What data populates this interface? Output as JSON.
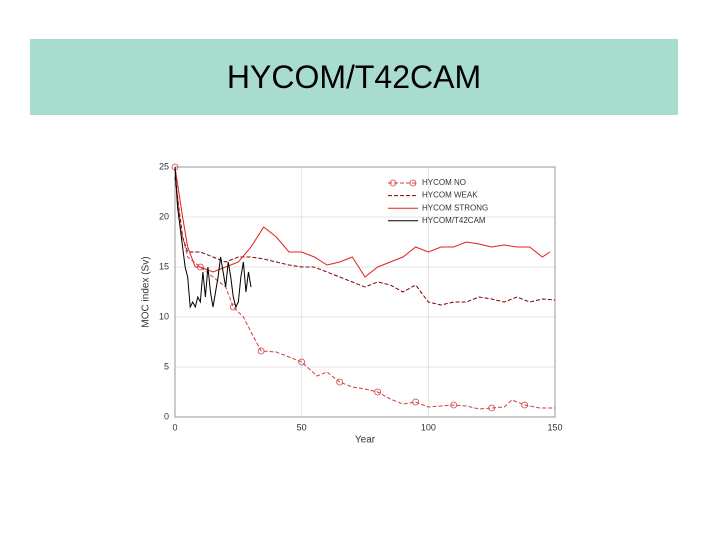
{
  "slide": {
    "title": "HYCOM/T42CAM"
  },
  "chart_data": {
    "type": "line",
    "xlabel": "Year",
    "ylabel": "MOC index (Sv)",
    "xlim": [
      0,
      150
    ],
    "ylim": [
      0,
      25
    ],
    "xticks": [
      0,
      50,
      100,
      150
    ],
    "yticks": [
      0,
      5,
      10,
      15,
      20,
      25
    ],
    "grid": true,
    "legend": "upper right",
    "series": [
      {
        "name": "HYCOM NO",
        "color": "#d04040",
        "dashed": true,
        "markers": true,
        "x": [
          0,
          2,
          5,
          10,
          15,
          20,
          23,
          27,
          30,
          34,
          40,
          45,
          50,
          56,
          60,
          65,
          70,
          75,
          80,
          85,
          90,
          95,
          100,
          105,
          110,
          115,
          120,
          125,
          130,
          133,
          138,
          144,
          150
        ],
        "values": [
          25,
          19,
          16,
          15,
          14,
          13,
          11,
          10,
          8.5,
          6.6,
          6.5,
          6,
          5.5,
          4.1,
          4.5,
          3.5,
          3,
          2.8,
          2.5,
          1.8,
          1.3,
          1.5,
          1.0,
          1.1,
          1.2,
          1.1,
          0.8,
          0.9,
          1.0,
          1.7,
          1.2,
          0.9,
          0.9
        ]
      },
      {
        "name": "HYCOM WEAK",
        "color": "#800000",
        "dashed": true,
        "markers": false,
        "x": [
          0,
          3,
          5,
          10,
          15,
          20,
          25,
          30,
          35,
          40,
          45,
          50,
          55,
          60,
          65,
          70,
          75,
          80,
          85,
          90,
          95,
          100,
          105,
          110,
          115,
          120,
          125,
          130,
          135,
          140,
          145,
          150
        ],
        "values": [
          24,
          18,
          16.5,
          16.5,
          16,
          15.5,
          16,
          16,
          15.8,
          15.5,
          15.2,
          15,
          15,
          14.5,
          14,
          13.5,
          13,
          13.5,
          13.2,
          12.5,
          13.2,
          11.5,
          11.2,
          11.5,
          11.5,
          12,
          11.8,
          11.5,
          12,
          11.5,
          11.8,
          11.7
        ]
      },
      {
        "name": "HYCOM STRONG",
        "color": "#e02020",
        "dashed": false,
        "markers": false,
        "x": [
          0,
          3,
          5,
          8,
          10,
          15,
          20,
          25,
          30,
          35,
          40,
          45,
          50,
          55,
          60,
          65,
          70,
          75,
          80,
          85,
          90,
          95,
          100,
          105,
          110,
          115,
          120,
          125,
          130,
          135,
          140,
          145,
          148
        ],
        "values": [
          25,
          20,
          17,
          15,
          15,
          14.5,
          15,
          15.5,
          17,
          19,
          18,
          16.5,
          16.5,
          16,
          15.2,
          15.5,
          16,
          14,
          15,
          15.5,
          16,
          17,
          16.5,
          17,
          17,
          17.5,
          17.3,
          17,
          17.2,
          17,
          17,
          16,
          16.5
        ]
      },
      {
        "name": "HYCOM/T42CAM",
        "color": "#000000",
        "dashed": false,
        "markers": false,
        "x": [
          0,
          1,
          2,
          3,
          4,
          5,
          6,
          7,
          8,
          9,
          10,
          11,
          12,
          13,
          14,
          15,
          16,
          17,
          18,
          19,
          20,
          21,
          22,
          23,
          24,
          25,
          26,
          27,
          28,
          29,
          30
        ],
        "values": [
          25,
          21,
          19,
          17,
          15,
          14,
          11,
          11.5,
          11,
          12,
          11.5,
          14.5,
          12,
          15,
          12.5,
          11,
          12.5,
          14,
          16,
          14.5,
          13,
          15.5,
          14,
          12,
          11,
          11.5,
          14,
          15.5,
          12.5,
          14.5,
          13
        ]
      }
    ]
  }
}
